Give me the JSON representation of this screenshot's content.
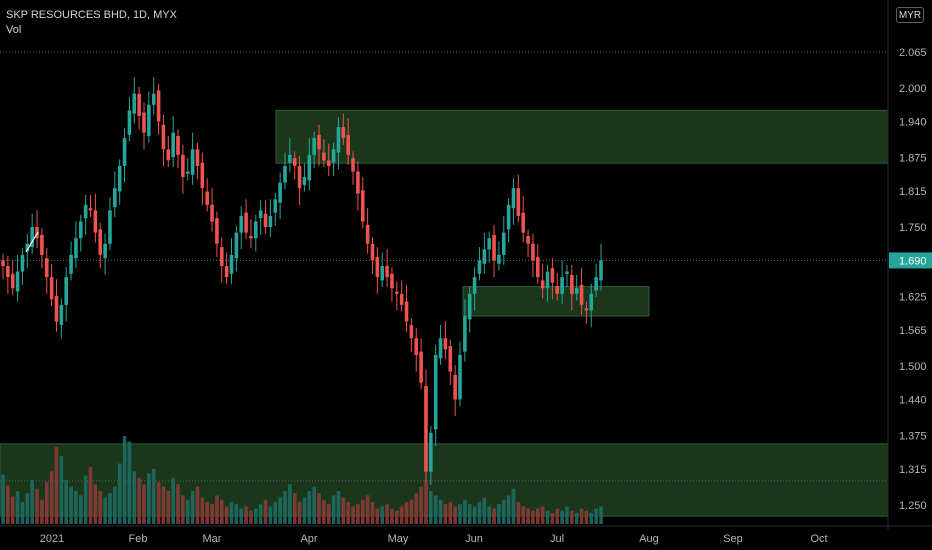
{
  "header": {
    "title": "SKP RESOURCES BHD, 1D, MYX",
    "volume_label": "Vol"
  },
  "currency_badge": "MYR",
  "colors": {
    "up": "#26a69a",
    "down": "#ef5350",
    "zone_fill": "#1b3a1e",
    "zone_stroke": "#2e5e33",
    "axis_text": "#b2b5be",
    "dotted_line": "#5d6270",
    "last_price_bg": "#26a69a"
  },
  "chart_data": {
    "type": "candlestick",
    "symbol": "SKP RESOURCES BHD",
    "interval": "1D",
    "exchange": "MYX",
    "currency": "MYR",
    "y_ticks": [
      "2.065",
      "2.000",
      "1.940",
      "1.875",
      "1.815",
      "1.750",
      "1.690",
      "1.625",
      "1.565",
      "1.500",
      "1.440",
      "1.375",
      "1.315",
      "1.250"
    ],
    "ylim": [
      1.23,
      2.085
    ],
    "x_ticks": [
      "2021",
      "Feb",
      "Mar",
      "Apr",
      "May",
      "Jun",
      "Jul",
      "Aug",
      "Sep",
      "Oct"
    ],
    "last_price": "1.690",
    "high_reference": 2.065,
    "zones": [
      {
        "name": "supply-zone",
        "price_low": 1.865,
        "price_high": 1.96,
        "from": "Mar 22",
        "to": "right-edge"
      },
      {
        "name": "demand-zone",
        "price_low": 1.59,
        "price_high": 1.643,
        "from": "Jun 1",
        "to": "Aug 1"
      },
      {
        "name": "volume-zone",
        "price_low": 1.23,
        "price_high": 1.36,
        "from": "left-edge",
        "to": "right-edge"
      }
    ],
    "close_path": [
      1.68,
      1.66,
      1.64,
      1.67,
      1.7,
      1.72,
      1.75,
      1.73,
      1.7,
      1.66,
      1.62,
      1.58,
      1.61,
      1.66,
      1.7,
      1.73,
      1.76,
      1.79,
      1.78,
      1.74,
      1.7,
      1.72,
      1.78,
      1.82,
      1.86,
      1.91,
      1.96,
      1.99,
      1.95,
      1.92,
      1.97,
      1.99,
      1.94,
      1.89,
      1.87,
      1.92,
      1.88,
      1.84,
      1.85,
      1.89,
      1.86,
      1.82,
      1.79,
      1.76,
      1.72,
      1.68,
      1.66,
      1.7,
      1.74,
      1.77,
      1.74,
      1.73,
      1.76,
      1.78,
      1.75,
      1.77,
      1.8,
      1.83,
      1.86,
      1.88,
      1.86,
      1.82,
      1.84,
      1.88,
      1.91,
      1.89,
      1.87,
      1.86,
      1.89,
      1.93,
      1.91,
      1.88,
      1.85,
      1.81,
      1.76,
      1.72,
      1.69,
      1.66,
      1.68,
      1.66,
      1.64,
      1.63,
      1.61,
      1.58,
      1.55,
      1.52,
      1.47,
      1.31,
      1.38,
      1.52,
      1.55,
      1.53,
      1.49,
      1.44,
      1.52,
      1.59,
      1.63,
      1.66,
      1.69,
      1.71,
      1.73,
      1.69,
      1.7,
      1.74,
      1.79,
      1.82,
      1.77,
      1.74,
      1.72,
      1.69,
      1.66,
      1.64,
      1.67,
      1.65,
      1.63,
      1.66,
      1.67,
      1.63,
      1.64,
      1.61,
      1.6,
      1.63,
      1.66,
      1.69
    ],
    "volume_relative": [
      0.45,
      0.35,
      0.25,
      0.3,
      0.2,
      0.28,
      0.4,
      0.32,
      0.22,
      0.38,
      0.48,
      0.7,
      0.62,
      0.4,
      0.34,
      0.3,
      0.26,
      0.44,
      0.52,
      0.36,
      0.3,
      0.24,
      0.28,
      0.34,
      0.55,
      0.8,
      0.75,
      0.48,
      0.42,
      0.36,
      0.46,
      0.5,
      0.38,
      0.34,
      0.3,
      0.42,
      0.36,
      0.26,
      0.22,
      0.3,
      0.34,
      0.24,
      0.2,
      0.18,
      0.26,
      0.22,
      0.16,
      0.2,
      0.18,
      0.14,
      0.16,
      0.12,
      0.14,
      0.18,
      0.22,
      0.16,
      0.2,
      0.24,
      0.3,
      0.36,
      0.28,
      0.2,
      0.24,
      0.3,
      0.34,
      0.28,
      0.22,
      0.18,
      0.26,
      0.3,
      0.24,
      0.2,
      0.16,
      0.18,
      0.22,
      0.26,
      0.2,
      0.14,
      0.16,
      0.18,
      0.14,
      0.12,
      0.16,
      0.2,
      0.22,
      0.28,
      0.34,
      0.4,
      0.3,
      0.26,
      0.22,
      0.18,
      0.2,
      0.16,
      0.18,
      0.22,
      0.18,
      0.16,
      0.2,
      0.24,
      0.16,
      0.14,
      0.18,
      0.22,
      0.26,
      0.32,
      0.2,
      0.16,
      0.14,
      0.12,
      0.14,
      0.16,
      0.12,
      0.1,
      0.14,
      0.12,
      0.16,
      0.12,
      0.1,
      0.14,
      0.12,
      0.1,
      0.14,
      0.16
    ]
  }
}
